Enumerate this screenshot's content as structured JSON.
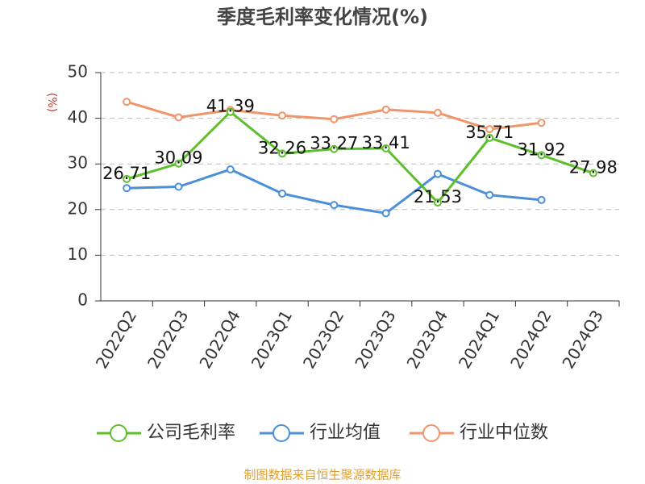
{
  "chart_data": {
    "type": "line",
    "title": "季度毛利率变化情况(%)",
    "y_label": "(%)",
    "categories": [
      "2022Q2",
      "2022Q3",
      "2022Q4",
      "2023Q1",
      "2023Q2",
      "2023Q3",
      "2023Q4",
      "2024Q1",
      "2024Q2",
      "2024Q3"
    ],
    "series": [
      {
        "name": "公司毛利率",
        "color": "#5cbf2a",
        "values": [
          26.71,
          30.09,
          41.39,
          32.26,
          33.27,
          33.41,
          21.53,
          35.71,
          31.92,
          27.98
        ],
        "show_labels": true
      },
      {
        "name": "行业均值",
        "color": "#4a8fd8",
        "values": [
          24.7,
          25.0,
          28.8,
          23.5,
          21.0,
          19.2,
          27.8,
          23.2,
          22.1,
          null
        ]
      },
      {
        "name": "行业中位数",
        "color": "#f0946a",
        "values": [
          43.6,
          40.2,
          41.8,
          40.6,
          39.8,
          41.9,
          41.2,
          37.6,
          39.0,
          null
        ]
      }
    ],
    "ylim": [
      0,
      50
    ],
    "yticks": [
      0,
      10,
      20,
      30,
      40,
      50
    ],
    "grid": true,
    "source": "制图数据来自恒生聚源数据库"
  }
}
